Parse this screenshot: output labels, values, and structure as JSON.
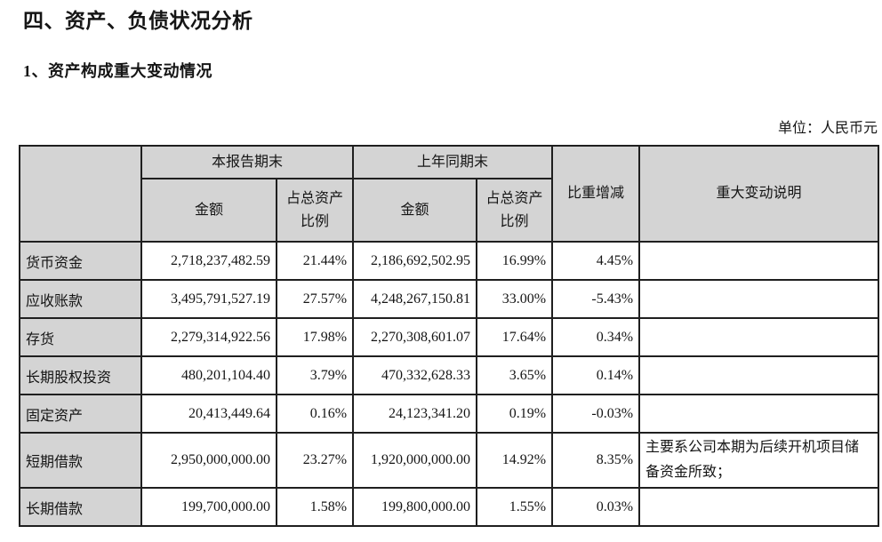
{
  "page": {
    "title": "四、资产、负债状况分析",
    "subtitle": "1、资产构成重大变动情况",
    "unit_label": "单位：人民币元"
  },
  "table": {
    "group_headers": {
      "current": "本报告期末",
      "prior": "上年同期末"
    },
    "sub_headers": {
      "amount": "金额",
      "ratio": "占总资产比例"
    },
    "single_headers": {
      "change": "比重增减",
      "note": "重大变动说明"
    },
    "rows": [
      {
        "label": "货币资金",
        "amount_current": "2,718,237,482.59",
        "ratio_current": "21.44%",
        "amount_prior": "2,186,692,502.95",
        "ratio_prior": "16.99%",
        "change": "4.45%",
        "note": ""
      },
      {
        "label": "应收账款",
        "amount_current": "3,495,791,527.19",
        "ratio_current": "27.57%",
        "amount_prior": "4,248,267,150.81",
        "ratio_prior": "33.00%",
        "change": "-5.43%",
        "note": ""
      },
      {
        "label": "存货",
        "amount_current": "2,279,314,922.56",
        "ratio_current": "17.98%",
        "amount_prior": "2,270,308,601.07",
        "ratio_prior": "17.64%",
        "change": "0.34%",
        "note": ""
      },
      {
        "label": "长期股权投资",
        "amount_current": "480,201,104.40",
        "ratio_current": "3.79%",
        "amount_prior": "470,332,628.33",
        "ratio_prior": "3.65%",
        "change": "0.14%",
        "note": ""
      },
      {
        "label": "固定资产",
        "amount_current": "20,413,449.64",
        "ratio_current": "0.16%",
        "amount_prior": "24,123,341.20",
        "ratio_prior": "0.19%",
        "change": "-0.03%",
        "note": ""
      },
      {
        "label": "短期借款",
        "amount_current": "2,950,000,000.00",
        "ratio_current": "23.27%",
        "amount_prior": "1,920,000,000.00",
        "ratio_prior": "14.92%",
        "change": "8.35%",
        "note": "主要系公司本期为后续开机项目储备资金所致；"
      },
      {
        "label": "长期借款",
        "amount_current": "199,700,000.00",
        "ratio_current": "1.58%",
        "amount_prior": "199,800,000.00",
        "ratio_prior": "1.55%",
        "change": "0.03%",
        "note": ""
      }
    ]
  },
  "colors": {
    "header_bg": "#d4d4d4",
    "border": "#1f1f1f",
    "text": "#151515",
    "page_bg": "#ffffff"
  }
}
